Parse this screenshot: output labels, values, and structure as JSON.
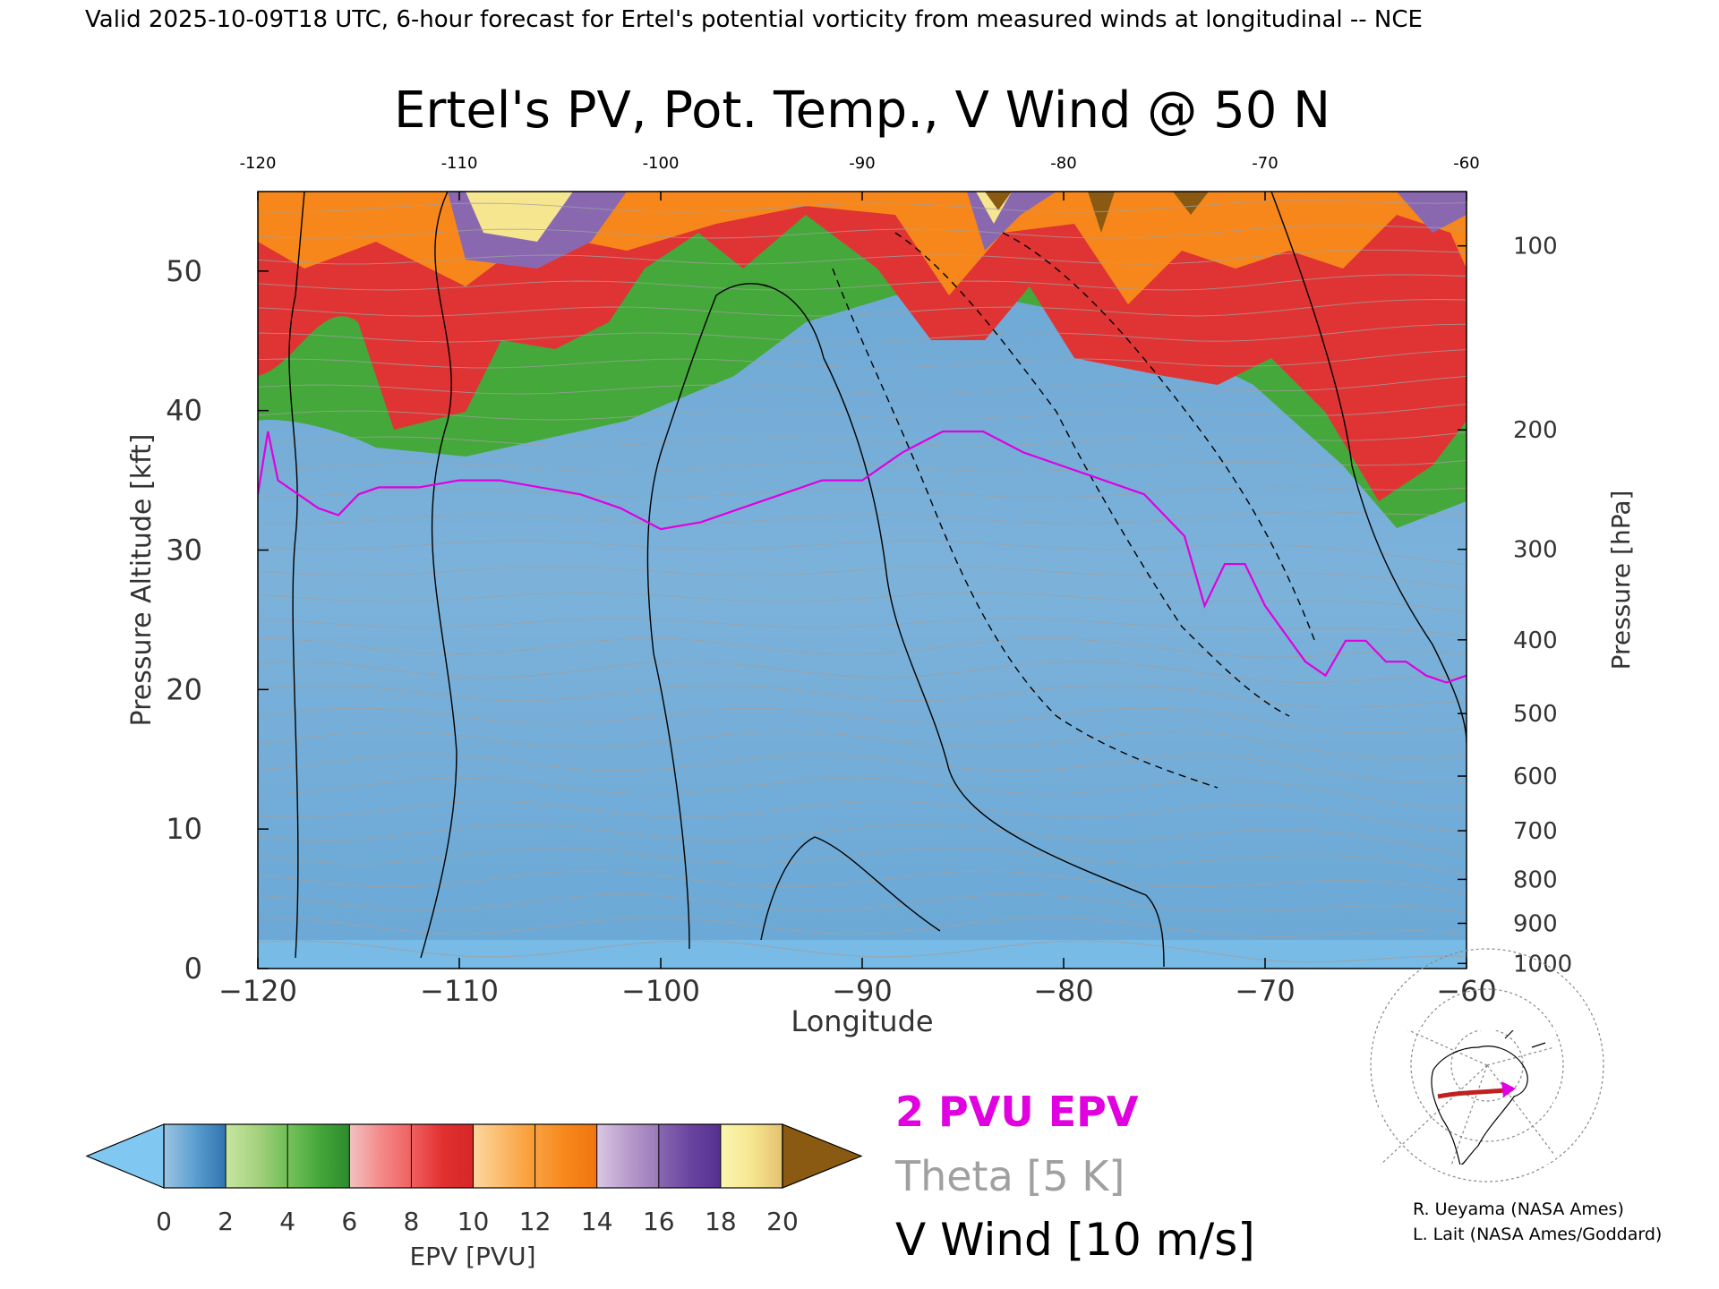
{
  "header": {
    "valid_line": "Valid 2025-10-09T18 UTC, 6-hour forecast for Ertel's potential vorticity from measured winds at longitudinal -- NCE"
  },
  "chart_data": {
    "type": "heatmap",
    "title": "Ertel's PV, Pot. Temp., V Wind @ 50 N",
    "xlabel": "Longitude",
    "ylabel_left": "Pressure Altitude [kft]",
    "ylabel_right": "Pressure [hPa]",
    "xlim": [
      -120,
      -60
    ],
    "ylim": [
      0,
      55.7
    ],
    "x_ticks": [
      -120,
      -110,
      -100,
      -90,
      -80,
      -70,
      -60
    ],
    "x_tick_labels": [
      "−120",
      "−110",
      "−100",
      "−90",
      "−80",
      "−70",
      "−60"
    ],
    "y_ticks": [
      0,
      10,
      20,
      30,
      40,
      50
    ],
    "y_tick_labels": [
      "0",
      "10",
      "20",
      "30",
      "40",
      "50"
    ],
    "pressure_ticks": [
      {
        "hpa": 100,
        "label": "100"
      },
      {
        "hpa": 200,
        "label": "200"
      },
      {
        "hpa": 300,
        "label": "300"
      },
      {
        "hpa": 400,
        "label": "400"
      },
      {
        "hpa": 500,
        "label": "500"
      },
      {
        "hpa": 600,
        "label": "600"
      },
      {
        "hpa": 700,
        "label": "700"
      },
      {
        "hpa": 800,
        "label": "800"
      },
      {
        "hpa": 900,
        "label": "900"
      },
      {
        "hpa": 1000,
        "label": "1000"
      }
    ],
    "pv_2pvu_line": {
      "color": "#e000e0",
      "lon": [
        -120,
        -119.5,
        -119,
        -118,
        -117,
        -116,
        -115,
        -114,
        -112,
        -110,
        -108,
        -106,
        -104,
        -102,
        -100,
        -98,
        -96,
        -94,
        -92,
        -90,
        -88,
        -86,
        -84,
        -82,
        -80,
        -78,
        -76,
        -74,
        -73,
        -72,
        -71,
        -70,
        -69,
        -68,
        -67,
        -66,
        -65,
        -64,
        -63,
        -62,
        -61,
        -60
      ],
      "kft": [
        34,
        38.5,
        35,
        34,
        33,
        32.5,
        34,
        34.5,
        34.5,
        35,
        35,
        34.5,
        34,
        33,
        31.5,
        32,
        33,
        34,
        35,
        35,
        37,
        38.5,
        38.5,
        37,
        36,
        35,
        34,
        31,
        26,
        29,
        29,
        26,
        24,
        22,
        21,
        23.5,
        23.5,
        22,
        22,
        21,
        20.5,
        21
      ]
    },
    "colorbar": {
      "label": "EPV [PVU]",
      "ticks": [
        0,
        2,
        4,
        6,
        8,
        10,
        12,
        14,
        16,
        18,
        20
      ],
      "tick_labels": [
        "0",
        "2",
        "4",
        "6",
        "8",
        "10",
        "12",
        "14",
        "16",
        "18",
        "20"
      ],
      "under_color": "#80c8f2",
      "over_color": "#8a5a12",
      "bins": [
        {
          "from": 0,
          "to": 1,
          "from_color": "#9cc4e2",
          "to_color": "#5b9fd0"
        },
        {
          "from": 1,
          "to": 2,
          "from_color": "#5b9fd0",
          "to_color": "#2f74b0"
        },
        {
          "from": 2,
          "to": 3,
          "from_color": "#c6e6a0",
          "to_color": "#a6d280"
        },
        {
          "from": 3,
          "to": 4,
          "from_color": "#a6d280",
          "to_color": "#6fbe55"
        },
        {
          "from": 4,
          "to": 5,
          "from_color": "#78c25c",
          "to_color": "#45a83a"
        },
        {
          "from": 5,
          "to": 6,
          "from_color": "#45a83a",
          "to_color": "#2c8a2c"
        },
        {
          "from": 6,
          "to": 7,
          "from_color": "#f2c2c2",
          "to_color": "#f48a8a"
        },
        {
          "from": 7,
          "to": 8,
          "from_color": "#f48a8a",
          "to_color": "#f06060"
        },
        {
          "from": 8,
          "to": 9,
          "from_color": "#f06060",
          "to_color": "#e23030"
        },
        {
          "from": 9,
          "to": 10,
          "from_color": "#e23030",
          "to_color": "#d62626"
        },
        {
          "from": 10,
          "to": 11,
          "from_color": "#fcd7a0",
          "to_color": "#fbb868"
        },
        {
          "from": 11,
          "to": 12,
          "from_color": "#fbb868",
          "to_color": "#f99a30"
        },
        {
          "from": 12,
          "to": 13,
          "from_color": "#f9a040",
          "to_color": "#f7871a"
        },
        {
          "from": 13,
          "to": 14,
          "from_color": "#f7871a",
          "to_color": "#f07410"
        },
        {
          "from": 14,
          "to": 15,
          "from_color": "#d9c8e4",
          "to_color": "#b89ccc"
        },
        {
          "from": 15,
          "to": 16,
          "from_color": "#b89ccc",
          "to_color": "#9a78b8"
        },
        {
          "from": 16,
          "to": 17,
          "from_color": "#8a68b0",
          "to_color": "#6a44a0"
        },
        {
          "from": 17,
          "to": 18,
          "from_color": "#6a44a0",
          "to_color": "#563090"
        },
        {
          "from": 18,
          "to": 19,
          "from_color": "#fbf6b0",
          "to_color": "#f6e690"
        },
        {
          "from": 19,
          "to": 20,
          "from_color": "#f6e690",
          "to_color": "#e4c070"
        }
      ]
    },
    "legend": {
      "placement": "bottom-center",
      "items": [
        {
          "label": "2 PVU EPV",
          "color": "#e000e0"
        },
        {
          "label": "Theta [5 K]",
          "color": "#a0a0a0"
        },
        {
          "label": "V Wind [10 m/s]",
          "color": "#000000"
        }
      ]
    },
    "credits": [
      "R. Ueyama (NASA Ames)",
      "L. Lait (NASA Ames/Goddard)"
    ]
  },
  "colors": {
    "troposphere": "#7ab0d8",
    "trop_dark": "#5b9fd0",
    "surface_light": "#80c8f2",
    "green": "#45a83a",
    "red": "#e03434",
    "orange": "#f7871a",
    "purple": "#8a68b0",
    "yellow": "#f6e690",
    "brown": "#8a5a12",
    "theta_gray": "#a0a0a0"
  },
  "inset_map": {
    "section_line_color": "#c02020",
    "marker_color": "#e000e0"
  }
}
